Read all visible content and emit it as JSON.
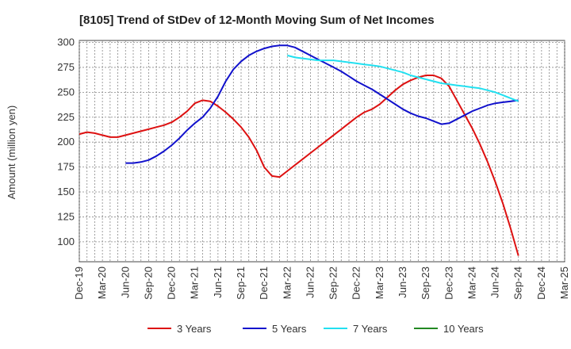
{
  "chart_data": {
    "type": "line",
    "title": "[8105]  Trend of StDev of 12-Month Moving Sum of Net Incomes",
    "xlabel": "",
    "ylabel": "Amount (million yen)",
    "ylim": [
      80,
      302
    ],
    "yticks": [
      100,
      125,
      150,
      175,
      200,
      225,
      250,
      275,
      300
    ],
    "xtick_labels": [
      "Dec-19",
      "Mar-20",
      "Jun-20",
      "Sep-20",
      "Dec-20",
      "Mar-21",
      "Jun-21",
      "Sep-21",
      "Dec-21",
      "Mar-22",
      "Jun-22",
      "Sep-22",
      "Dec-22",
      "Mar-23",
      "Jun-23",
      "Sep-23",
      "Dec-23",
      "Mar-24",
      "Jun-24",
      "Sep-24",
      "Dec-24",
      "Mar-25"
    ],
    "grid": true,
    "legend_position": "bottom",
    "series": [
      {
        "name": "3 Years",
        "color": "#dd1111",
        "points": [
          [
            0,
            208
          ],
          [
            1,
            210
          ],
          [
            2,
            209
          ],
          [
            3,
            207
          ],
          [
            4,
            205
          ],
          [
            5,
            205
          ],
          [
            6,
            207
          ],
          [
            7,
            209
          ],
          [
            8,
            211
          ],
          [
            9,
            213
          ],
          [
            10,
            215
          ],
          [
            11,
            217
          ],
          [
            12,
            220
          ],
          [
            13,
            225
          ],
          [
            14,
            231
          ],
          [
            15,
            239
          ],
          [
            16,
            242
          ],
          [
            17,
            241
          ],
          [
            18,
            236
          ],
          [
            19,
            230
          ],
          [
            20,
            223
          ],
          [
            21,
            215
          ],
          [
            22,
            205
          ],
          [
            23,
            192
          ],
          [
            24,
            175
          ],
          [
            25,
            166
          ],
          [
            26,
            165
          ],
          [
            27,
            171
          ],
          [
            28,
            177
          ],
          [
            29,
            183
          ],
          [
            30,
            189
          ],
          [
            31,
            195
          ],
          [
            32,
            201
          ],
          [
            33,
            207
          ],
          [
            34,
            213
          ],
          [
            35,
            219
          ],
          [
            36,
            225
          ],
          [
            37,
            230
          ],
          [
            38,
            233
          ],
          [
            39,
            238
          ],
          [
            40,
            245
          ],
          [
            41,
            252
          ],
          [
            42,
            258
          ],
          [
            43,
            262
          ],
          [
            44,
            265
          ],
          [
            45,
            267
          ],
          [
            46,
            267
          ],
          [
            47,
            264
          ],
          [
            48,
            256
          ],
          [
            49,
            242
          ],
          [
            50,
            228
          ],
          [
            51,
            214
          ],
          [
            52,
            198
          ],
          [
            53,
            180
          ],
          [
            54,
            160
          ],
          [
            55,
            138
          ],
          [
            56,
            113
          ],
          [
            57,
            86
          ]
        ]
      },
      {
        "name": "5 Years",
        "color": "#1111cc",
        "points": [
          [
            6,
            179
          ],
          [
            7,
            179
          ],
          [
            8,
            180
          ],
          [
            9,
            182
          ],
          [
            10,
            186
          ],
          [
            11,
            191
          ],
          [
            12,
            197
          ],
          [
            13,
            204
          ],
          [
            14,
            212
          ],
          [
            15,
            219
          ],
          [
            16,
            225
          ],
          [
            17,
            234
          ],
          [
            18,
            246
          ],
          [
            19,
            261
          ],
          [
            20,
            273
          ],
          [
            21,
            281
          ],
          [
            22,
            287
          ],
          [
            23,
            291
          ],
          [
            24,
            294
          ],
          [
            25,
            296
          ],
          [
            26,
            297
          ],
          [
            27,
            297
          ],
          [
            28,
            295
          ],
          [
            29,
            291
          ],
          [
            30,
            287
          ],
          [
            31,
            283
          ],
          [
            32,
            279
          ],
          [
            33,
            275
          ],
          [
            34,
            271
          ],
          [
            35,
            266
          ],
          [
            36,
            261
          ],
          [
            37,
            257
          ],
          [
            38,
            253
          ],
          [
            39,
            248
          ],
          [
            40,
            243
          ],
          [
            41,
            238
          ],
          [
            42,
            233
          ],
          [
            43,
            229
          ],
          [
            44,
            226
          ],
          [
            45,
            224
          ],
          [
            46,
            221
          ],
          [
            47,
            218
          ],
          [
            48,
            219
          ],
          [
            49,
            223
          ],
          [
            50,
            227
          ],
          [
            51,
            231
          ],
          [
            52,
            234
          ],
          [
            53,
            237
          ],
          [
            54,
            239
          ],
          [
            55,
            240
          ],
          [
            56,
            241
          ],
          [
            57,
            242
          ]
        ]
      },
      {
        "name": "7 Years",
        "color": "#22e0f0",
        "points": [
          [
            27,
            287
          ],
          [
            28,
            285
          ],
          [
            29,
            284
          ],
          [
            30,
            283
          ],
          [
            31,
            282
          ],
          [
            32,
            282
          ],
          [
            33,
            282
          ],
          [
            34,
            281
          ],
          [
            35,
            280
          ],
          [
            36,
            279
          ],
          [
            37,
            278
          ],
          [
            38,
            277
          ],
          [
            39,
            276
          ],
          [
            40,
            274
          ],
          [
            41,
            272
          ],
          [
            42,
            270
          ],
          [
            43,
            267
          ],
          [
            44,
            265
          ],
          [
            45,
            263
          ],
          [
            46,
            261
          ],
          [
            47,
            259
          ],
          [
            48,
            258
          ],
          [
            49,
            257
          ],
          [
            50,
            256
          ],
          [
            51,
            255
          ],
          [
            52,
            254
          ],
          [
            53,
            252
          ],
          [
            54,
            250
          ],
          [
            55,
            247
          ],
          [
            56,
            244
          ],
          [
            57,
            241
          ]
        ]
      },
      {
        "name": "10 Years",
        "color": "#228822",
        "points": []
      }
    ]
  }
}
